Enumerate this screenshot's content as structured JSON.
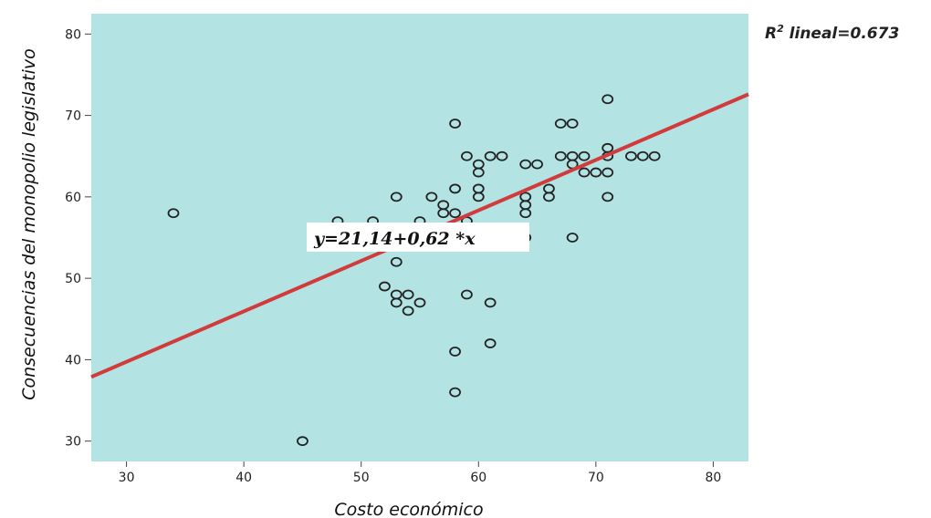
{
  "chart_data": {
    "type": "scatter",
    "title": "",
    "xlabel": "Costo económico",
    "ylabel": "Consecuencias del monopolio legislativo",
    "xlim": [
      27,
      83
    ],
    "ylim": [
      27.5,
      82.5
    ],
    "x_ticks": [
      30,
      40,
      50,
      60,
      70,
      80
    ],
    "y_ticks": [
      30,
      40,
      50,
      60,
      70,
      80
    ],
    "grid": false,
    "fit_line": {
      "intercept": 21.14,
      "slope": 0.62,
      "equation_label": "y=21,14+0,62 *x",
      "color": "#d23b3b"
    },
    "r2_label": {
      "prefix": "R",
      "sup": "2",
      "text": " lineal=0.673"
    },
    "colors": {
      "plot_background": "#b3e3e3",
      "marker": "#222222",
      "fit_line": "#d23b3b"
    },
    "points": [
      {
        "x": 34,
        "y": 58
      },
      {
        "x": 45,
        "y": 30
      },
      {
        "x": 48,
        "y": 57
      },
      {
        "x": 51,
        "y": 57
      },
      {
        "x": 52,
        "y": 49
      },
      {
        "x": 53,
        "y": 60
      },
      {
        "x": 53,
        "y": 52
      },
      {
        "x": 53,
        "y": 48
      },
      {
        "x": 53,
        "y": 47
      },
      {
        "x": 54,
        "y": 48
      },
      {
        "x": 54,
        "y": 46
      },
      {
        "x": 55,
        "y": 57
      },
      {
        "x": 55,
        "y": 47
      },
      {
        "x": 56,
        "y": 60
      },
      {
        "x": 57,
        "y": 59
      },
      {
        "x": 57,
        "y": 58
      },
      {
        "x": 58,
        "y": 69
      },
      {
        "x": 58,
        "y": 61
      },
      {
        "x": 58,
        "y": 58
      },
      {
        "x": 58,
        "y": 41
      },
      {
        "x": 58,
        "y": 36
      },
      {
        "x": 59,
        "y": 65
      },
      {
        "x": 59,
        "y": 57
      },
      {
        "x": 59,
        "y": 48
      },
      {
        "x": 60,
        "y": 64
      },
      {
        "x": 60,
        "y": 63
      },
      {
        "x": 60,
        "y": 61
      },
      {
        "x": 60,
        "y": 60
      },
      {
        "x": 61,
        "y": 65
      },
      {
        "x": 61,
        "y": 47
      },
      {
        "x": 61,
        "y": 42
      },
      {
        "x": 62,
        "y": 65
      },
      {
        "x": 64,
        "y": 64
      },
      {
        "x": 64,
        "y": 60
      },
      {
        "x": 64,
        "y": 59
      },
      {
        "x": 64,
        "y": 58
      },
      {
        "x": 64,
        "y": 55
      },
      {
        "x": 65,
        "y": 64
      },
      {
        "x": 66,
        "y": 61
      },
      {
        "x": 66,
        "y": 60
      },
      {
        "x": 67,
        "y": 69
      },
      {
        "x": 67,
        "y": 65
      },
      {
        "x": 68,
        "y": 69
      },
      {
        "x": 68,
        "y": 65
      },
      {
        "x": 68,
        "y": 64
      },
      {
        "x": 68,
        "y": 55
      },
      {
        "x": 69,
        "y": 65
      },
      {
        "x": 69,
        "y": 63
      },
      {
        "x": 70,
        "y": 63
      },
      {
        "x": 71,
        "y": 72
      },
      {
        "x": 71,
        "y": 66
      },
      {
        "x": 71,
        "y": 65
      },
      {
        "x": 71,
        "y": 63
      },
      {
        "x": 71,
        "y": 60
      },
      {
        "x": 73,
        "y": 65
      },
      {
        "x": 74,
        "y": 65
      },
      {
        "x": 75,
        "y": 65
      }
    ]
  }
}
